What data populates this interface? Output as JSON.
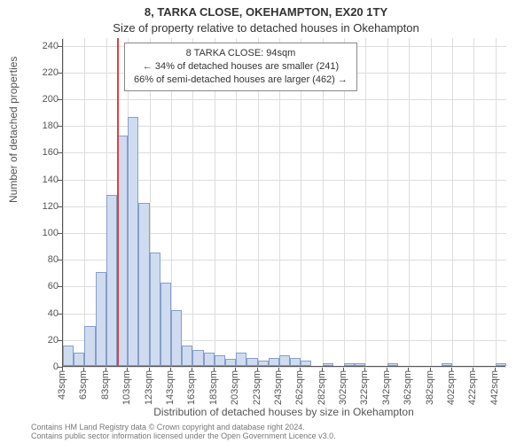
{
  "titles": {
    "main": "8, TARKA CLOSE, OKEHAMPTON, EX20 1TY",
    "sub": "Size of property relative to detached houses in Okehampton"
  },
  "axes": {
    "y_label": "Number of detached properties",
    "x_label": "Distribution of detached houses by size in Okehampton",
    "y_ticks": [
      0,
      20,
      40,
      60,
      80,
      100,
      120,
      140,
      160,
      180,
      200,
      220,
      240
    ],
    "y_max": 245,
    "x_ticks": [
      {
        "pos": 0,
        "label": "43sqm"
      },
      {
        "pos": 2,
        "label": "63sqm"
      },
      {
        "pos": 4,
        "label": "83sqm"
      },
      {
        "pos": 6,
        "label": "103sqm"
      },
      {
        "pos": 8,
        "label": "123sqm"
      },
      {
        "pos": 10,
        "label": "143sqm"
      },
      {
        "pos": 12,
        "label": "163sqm"
      },
      {
        "pos": 14,
        "label": "183sqm"
      },
      {
        "pos": 16,
        "label": "203sqm"
      },
      {
        "pos": 18,
        "label": "223sqm"
      },
      {
        "pos": 20,
        "label": "243sqm"
      },
      {
        "pos": 22,
        "label": "262sqm"
      },
      {
        "pos": 24,
        "label": "282sqm"
      },
      {
        "pos": 26,
        "label": "302sqm"
      },
      {
        "pos": 28,
        "label": "322sqm"
      },
      {
        "pos": 30,
        "label": "342sqm"
      },
      {
        "pos": 32,
        "label": "362sqm"
      },
      {
        "pos": 34,
        "label": "382sqm"
      },
      {
        "pos": 36,
        "label": "402sqm"
      },
      {
        "pos": 38,
        "label": "422sqm"
      },
      {
        "pos": 40,
        "label": "442sqm"
      }
    ],
    "x_bin_count": 41
  },
  "chart": {
    "type": "histogram",
    "bar_fill": "#cfdcf0",
    "bar_stroke": "#869ec8",
    "background": "#ffffff",
    "grid_color": "#dddddd",
    "bars": [
      15,
      10,
      30,
      70,
      128,
      172,
      186,
      122,
      85,
      62,
      42,
      15,
      12,
      10,
      8,
      5,
      10,
      6,
      4,
      6,
      8,
      6,
      4,
      0,
      2,
      0,
      2,
      2,
      0,
      0,
      2,
      0,
      0,
      0,
      0,
      2,
      0,
      0,
      0,
      0,
      2
    ],
    "marker": {
      "color": "#e04040",
      "x_value_sqm": 94,
      "x_bin_fractional": 5.1
    }
  },
  "info_box": {
    "line1": "8 TARKA CLOSE: 94sqm",
    "line2": "← 34% of detached houses are smaller (241)",
    "line3": "66% of semi-detached houses are larger (462) →"
  },
  "footer": {
    "line1": "Contains HM Land Registry data © Crown copyright and database right 2024.",
    "line2": "Contains public sector information licensed under the Open Government Licence v3.0."
  },
  "style": {
    "title_fontsize": 13,
    "axis_label_fontsize": 12,
    "tick_fontsize": 11,
    "info_fontsize": 11,
    "footer_fontsize": 9
  }
}
